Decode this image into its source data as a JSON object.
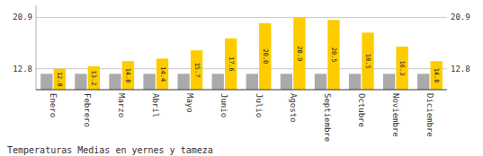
{
  "chart_data": {
    "type": "bar",
    "title": "Temperaturas Medias en yernes y tameza",
    "categories": [
      "Enero",
      "Febrero",
      "Marzo",
      "Abril",
      "Mayo",
      "Junio",
      "Julio",
      "Agosto",
      "Septiembre",
      "Octubre",
      "Noviembre",
      "Diciembre"
    ],
    "series": [
      {
        "color": "#AAAAAA",
        "values": [
          12.0,
          12.0,
          12.0,
          12.0,
          12.0,
          12.0,
          12.0,
          12.0,
          12.0,
          12.0,
          12.0,
          12.0
        ]
      },
      {
        "color": "#FFCC00",
        "values": [
          12.8,
          13.2,
          14.0,
          14.4,
          15.7,
          17.6,
          20.0,
          20.9,
          20.5,
          18.5,
          16.3,
          14.0
        ],
        "value_labels": [
          "12.8",
          "13.2",
          "14.0",
          "14.4",
          "15.7",
          "17.6",
          "20.0",
          "20.9",
          "20.5",
          "18.5",
          "16.3",
          "14.0"
        ],
        "data_labels": true
      }
    ],
    "ylim": [
      9.5,
      22.8
    ],
    "yticks": [
      12.8,
      20.9
    ],
    "grid": true
  }
}
